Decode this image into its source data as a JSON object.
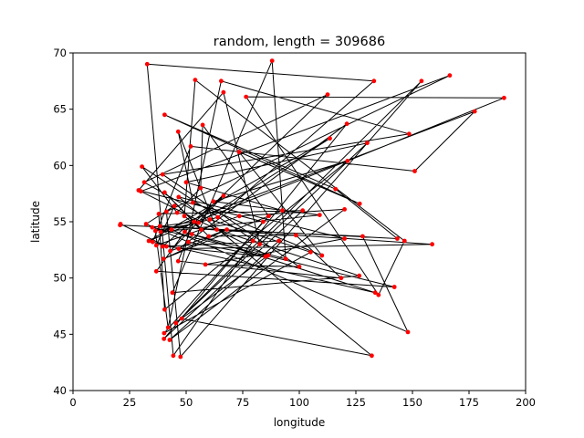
{
  "chart_data": {
    "type": "line",
    "title": "random, length = 309686",
    "xlabel": "longitude",
    "ylabel": "latitude",
    "xlim": [
      0,
      200
    ],
    "ylim": [
      40,
      70
    ],
    "xticks": [
      "0",
      "25",
      "50",
      "75",
      "100",
      "125",
      "150",
      "175",
      "200"
    ],
    "yticks": [
      "40",
      "45",
      "50",
      "55",
      "60",
      "65",
      "70"
    ],
    "grid": false,
    "legend": "none",
    "line_color": "#000000",
    "marker_color": "#ff0000",
    "series": [
      {
        "points": [
          [
            20.8,
            54.7
          ],
          [
            128.0,
            53.7
          ],
          [
            148.0,
            45.2
          ],
          [
            43.5,
            54.3
          ],
          [
            64.0,
            55.4
          ],
          [
            133.0,
            67.5
          ],
          [
            32.8,
            69.0
          ],
          [
            44.3,
            43.1
          ],
          [
            79.5,
            53.3
          ],
          [
            121.0,
            63.7
          ],
          [
            46.7,
            52.6
          ],
          [
            158.7,
            53.0
          ],
          [
            38.4,
            54.6
          ],
          [
            143.3,
            53.5
          ],
          [
            116.0,
            57.9
          ],
          [
            40.5,
            64.5
          ],
          [
            126.7,
            56.6
          ],
          [
            73.4,
            61.2
          ],
          [
            110.0,
            52.0
          ],
          [
            53.0,
            56.7
          ],
          [
            46.5,
            63.0
          ],
          [
            63.5,
            54.3
          ],
          [
            126.5,
            50.2
          ],
          [
            43.9,
            48.7
          ],
          [
            88.0,
            69.3
          ],
          [
            94.0,
            51.7
          ],
          [
            52.5,
            53.9
          ],
          [
            133.5,
            48.7
          ],
          [
            35.2,
            53.2
          ],
          [
            52.0,
            61.7
          ],
          [
            151.0,
            59.5
          ],
          [
            177.5,
            64.8
          ],
          [
            38.7,
            54.1
          ],
          [
            109.0,
            55.6
          ],
          [
            62.0,
            56.8
          ],
          [
            121.3,
            60.4
          ],
          [
            40.5,
            47.2
          ],
          [
            37.9,
            55.7
          ],
          [
            101.5,
            56.0
          ],
          [
            40.2,
            44.6
          ],
          [
            84.0,
            55.0
          ],
          [
            29.0,
            57.8
          ],
          [
            66.5,
            66.5
          ],
          [
            82.5,
            53.0
          ],
          [
            30.5,
            59.9
          ],
          [
            46.0,
            55.8
          ],
          [
            56.4,
            58.0
          ],
          [
            57.3,
            63.6
          ],
          [
            86.5,
            55.5
          ],
          [
            40.3,
            45.1
          ],
          [
            105.0,
            52.3
          ],
          [
            60.5,
            55.2
          ],
          [
            31.5,
            58.5
          ],
          [
            112.5,
            66.3
          ],
          [
            49.4,
            54.1
          ],
          [
            36.8,
            50.6
          ],
          [
            142.0,
            49.2
          ],
          [
            35.0,
            54.5
          ],
          [
            53.5,
            55.0
          ],
          [
            46.5,
            51.5
          ],
          [
            118.5,
            50.0
          ],
          [
            98.5,
            53.8
          ],
          [
            60.0,
            53.7
          ],
          [
            40.5,
            57.6
          ],
          [
            56.7,
            54.3
          ],
          [
            49.2,
            55.5
          ],
          [
            54.0,
            67.6
          ],
          [
            146.5,
            53.3
          ],
          [
            135.0,
            48.5
          ],
          [
            76.5,
            66.1
          ],
          [
            190.5,
            66.0
          ],
          [
            33.5,
            53.3
          ],
          [
            113.5,
            62.4
          ],
          [
            55.5,
            54.9
          ],
          [
            36.4,
            54.2
          ],
          [
            42.0,
            45.6
          ],
          [
            65.5,
            67.5
          ],
          [
            148.5,
            62.8
          ],
          [
            39.6,
            59.2
          ],
          [
            100.0,
            51.0
          ],
          [
            58.5,
            51.2
          ],
          [
            120.0,
            53.5
          ],
          [
            46.7,
            57.2
          ],
          [
            132.0,
            43.1
          ],
          [
            48.0,
            46.4
          ],
          [
            86.2,
            52.0
          ],
          [
            30.0,
            57.7
          ],
          [
            166.5,
            68.0
          ],
          [
            41.3,
            55.9
          ],
          [
            47.5,
            43.0
          ],
          [
            154.0,
            67.5
          ],
          [
            45.5,
            46.0
          ],
          [
            130.0,
            62.0
          ],
          [
            50.0,
            58.5
          ],
          [
            92.5,
            56.0
          ],
          [
            40.0,
            51.7
          ],
          [
            68.0,
            54.3
          ],
          [
            43.0,
            52.4
          ],
          [
            66.5,
            57.3
          ],
          [
            39.5,
            52.8
          ],
          [
            91.0,
            53.3
          ],
          [
            42.7,
            44.5
          ],
          [
            120.0,
            56.1
          ],
          [
            73.5,
            55.5
          ],
          [
            36.8,
            52.9
          ],
          [
            44.8,
            56.4
          ],
          [
            32.3,
            54.8
          ],
          [
            51.0,
            53.2
          ],
          [
            85.0,
            51.9
          ],
          [
            41.3,
            52.8
          ],
          [
            21.0,
            54.8
          ]
        ]
      }
    ]
  }
}
